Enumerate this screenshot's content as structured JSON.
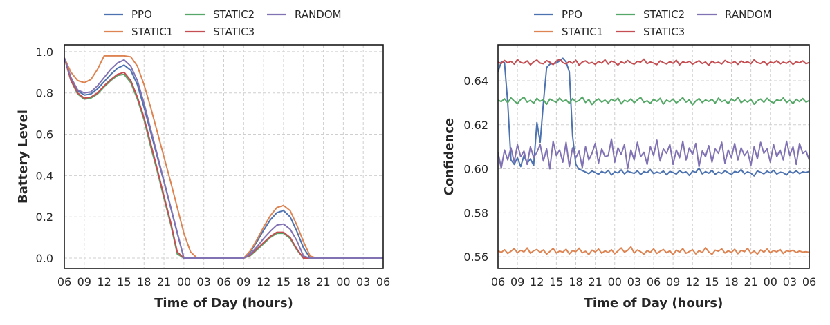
{
  "colors": {
    "PPO": "#4C72B0",
    "STATIC1": "#DD8452",
    "STATIC2": "#55A868",
    "STATIC3": "#C44E52",
    "RANDOM": "#8172B3"
  },
  "chart_data": [
    {
      "type": "line",
      "xlabel": "Time of Day (hours)",
      "ylabel": "Battery Level",
      "xlim_hours": [
        0,
        48
      ],
      "ylim": [
        -0.05,
        1.033
      ],
      "xtick_labels": [
        "06",
        "09",
        "12",
        "15",
        "18",
        "21",
        "00",
        "03",
        "06",
        "09",
        "12",
        "15",
        "18",
        "21",
        "00",
        "03",
        "06"
      ],
      "yticks": [
        0.0,
        0.2,
        0.4,
        0.6,
        0.8,
        1.0
      ],
      "ytick_labels": [
        "0.0",
        "0.2",
        "0.4",
        "0.6",
        "0.8",
        "1.0"
      ],
      "grid": true,
      "legend": {
        "placement": "top-center-outside",
        "rows": [
          [
            "PPO",
            "STATIC2",
            "RANDOM"
          ],
          [
            "STATIC1",
            "STATIC3"
          ]
        ]
      },
      "series": [
        {
          "name": "PPO",
          "values": [
            0.97,
            0.87,
            0.81,
            0.79,
            0.795,
            0.82,
            0.855,
            0.89,
            0.92,
            0.935,
            0.91,
            0.84,
            0.73,
            0.61,
            0.49,
            0.37,
            0.245,
            0.12,
            0.0,
            0,
            0,
            0,
            0,
            0,
            0,
            0,
            0,
            0,
            0.03,
            0.08,
            0.135,
            0.185,
            0.22,
            0.23,
            0.2,
            0.13,
            0.05,
            0,
            0,
            0,
            0,
            0,
            0,
            0,
            0,
            0,
            0,
            0,
            0
          ]
        },
        {
          "name": "STATIC1",
          "values": [
            0.97,
            0.9,
            0.86,
            0.85,
            0.865,
            0.915,
            0.98,
            0.98,
            0.98,
            0.98,
            0.975,
            0.93,
            0.84,
            0.73,
            0.61,
            0.49,
            0.37,
            0.245,
            0.12,
            0.03,
            0,
            0,
            0,
            0,
            0,
            0,
            0,
            0,
            0.035,
            0.09,
            0.15,
            0.205,
            0.245,
            0.255,
            0.23,
            0.16,
            0.08,
            0.01,
            0,
            0,
            0,
            0,
            0,
            0,
            0,
            0,
            0,
            0,
            0
          ]
        },
        {
          "name": "STATIC2",
          "values": [
            0.97,
            0.86,
            0.795,
            0.77,
            0.775,
            0.795,
            0.83,
            0.86,
            0.885,
            0.89,
            0.85,
            0.77,
            0.67,
            0.54,
            0.42,
            0.29,
            0.165,
            0.02,
            0,
            0,
            0,
            0,
            0,
            0,
            0,
            0,
            0,
            0,
            0.012,
            0.04,
            0.07,
            0.1,
            0.12,
            0.12,
            0.095,
            0.04,
            0,
            0,
            0,
            0,
            0,
            0,
            0,
            0,
            0,
            0,
            0,
            0,
            0
          ]
        },
        {
          "name": "STATIC3",
          "values": [
            0.97,
            0.86,
            0.8,
            0.775,
            0.78,
            0.8,
            0.835,
            0.865,
            0.89,
            0.9,
            0.86,
            0.78,
            0.68,
            0.555,
            0.43,
            0.3,
            0.175,
            0.03,
            0,
            0,
            0,
            0,
            0,
            0,
            0,
            0,
            0,
            0,
            0.015,
            0.045,
            0.075,
            0.105,
            0.125,
            0.125,
            0.1,
            0.045,
            0,
            0,
            0,
            0,
            0,
            0,
            0,
            0,
            0,
            0,
            0,
            0,
            0
          ]
        },
        {
          "name": "RANDOM",
          "values": [
            0.97,
            0.875,
            0.815,
            0.8,
            0.805,
            0.835,
            0.875,
            0.915,
            0.945,
            0.96,
            0.93,
            0.86,
            0.75,
            0.625,
            0.5,
            0.375,
            0.25,
            0.125,
            0.0,
            0,
            0,
            0,
            0,
            0,
            0,
            0,
            0,
            0,
            0.02,
            0.055,
            0.095,
            0.13,
            0.16,
            0.165,
            0.14,
            0.085,
            0.01,
            0,
            0,
            0,
            0,
            0,
            0,
            0,
            0,
            0,
            0,
            0,
            0
          ]
        }
      ]
    },
    {
      "type": "line",
      "xlabel": "Time of Day (hours)",
      "ylabel": "Confidence",
      "xlim_hours": [
        0,
        48
      ],
      "ylim": [
        0.5547,
        0.6563
      ],
      "xtick_labels": [
        "06",
        "09",
        "12",
        "15",
        "18",
        "21",
        "00",
        "03",
        "06",
        "09",
        "12",
        "15",
        "18",
        "21",
        "00",
        "03",
        "06"
      ],
      "yticks": [
        0.56,
        0.58,
        0.6,
        0.62,
        0.64
      ],
      "ytick_labels": [
        "0.56",
        "0.58",
        "0.60",
        "0.62",
        "0.64"
      ],
      "grid": true,
      "legend": {
        "placement": "top-center-outside",
        "rows": [
          [
            "PPO",
            "STATIC2",
            "RANDOM"
          ],
          [
            "STATIC1",
            "STATIC3"
          ]
        ]
      },
      "series": [
        {
          "name": "PPO",
          "values": [
            0.644,
            0.6485,
            0.6482,
            0.63,
            0.604,
            0.602,
            0.605,
            0.601,
            0.606,
            0.6025,
            0.6045,
            0.6015,
            0.621,
            0.612,
            0.63,
            0.646,
            0.6475,
            0.6478,
            0.648,
            0.649,
            0.6502,
            0.6485,
            0.644,
            0.615,
            0.602,
            0.5998,
            0.5992,
            0.5985,
            0.5978,
            0.599,
            0.5983,
            0.5975,
            0.5988,
            0.598,
            0.5993,
            0.5972,
            0.5986,
            0.5981,
            0.5995,
            0.5977,
            0.5989,
            0.5984,
            0.5979,
            0.5991,
            0.5974,
            0.5987,
            0.5982,
            0.5996,
            0.5978,
            0.5985,
            0.598,
            0.599,
            0.5973,
            0.5988,
            0.5983,
            0.5976,
            0.5992,
            0.5981,
            0.5986,
            0.597,
            0.5989,
            0.5984,
            0.6003,
            0.5977,
            0.5987,
            0.598,
            0.5993,
            0.5975,
            0.5985,
            0.5979,
            0.5991,
            0.5982,
            0.5974,
            0.5988,
            0.5983,
            0.5996,
            0.5978,
            0.5986,
            0.598,
            0.5968,
            0.599,
            0.5984,
            0.5977,
            0.5989,
            0.5981,
            0.5993,
            0.5976,
            0.5985,
            0.5982,
            0.5972,
            0.5988,
            0.598,
            0.5991,
            0.5978,
            0.5986,
            0.5983,
            0.5988
          ]
        },
        {
          "name": "STATIC1",
          "values": [
            0.5628,
            0.5619,
            0.5632,
            0.5615,
            0.5625,
            0.5637,
            0.5618,
            0.5629,
            0.5622,
            0.564,
            0.5616,
            0.5627,
            0.5633,
            0.562,
            0.5631,
            0.5612,
            0.5624,
            0.5638,
            0.5617,
            0.5626,
            0.5621,
            0.5634,
            0.5613,
            0.5628,
            0.5623,
            0.5639,
            0.5618,
            0.5625,
            0.561,
            0.563,
            0.5622,
            0.5635,
            0.5616,
            0.5627,
            0.5619,
            0.5632,
            0.5614,
            0.5626,
            0.564,
            0.5621,
            0.5629,
            0.5645,
            0.5617,
            0.5631,
            0.5623,
            0.5612,
            0.5628,
            0.562,
            0.5636,
            0.5615,
            0.5625,
            0.5633,
            0.5618,
            0.5627,
            0.5609,
            0.563,
            0.5621,
            0.5637,
            0.5616,
            0.5624,
            0.5632,
            0.5613,
            0.5628,
            0.5619,
            0.5641,
            0.5622,
            0.5611,
            0.563,
            0.5625,
            0.5636,
            0.5617,
            0.5627,
            0.562,
            0.5634,
            0.5614,
            0.5629,
            0.5623,
            0.5638,
            0.5616,
            0.5626,
            0.5612,
            0.5631,
            0.5621,
            0.5635,
            0.5618,
            0.5628,
            0.5622,
            0.5633,
            0.5615,
            0.5627,
            0.5624,
            0.563,
            0.5619,
            0.5626,
            0.5621,
            0.5623,
            0.562
          ]
        },
        {
          "name": "STATIC2",
          "values": [
            0.6312,
            0.6305,
            0.6318,
            0.63,
            0.6322,
            0.6308,
            0.6296,
            0.6315,
            0.6325,
            0.6303,
            0.6311,
            0.6298,
            0.632,
            0.6307,
            0.6314,
            0.6293,
            0.6317,
            0.6309,
            0.6302,
            0.6321,
            0.6306,
            0.6313,
            0.6297,
            0.6319,
            0.6304,
            0.631,
            0.6326,
            0.6301,
            0.6315,
            0.6292,
            0.6308,
            0.6318,
            0.6303,
            0.6312,
            0.6299,
            0.6316,
            0.6307,
            0.6321,
            0.6295,
            0.6311,
            0.6305,
            0.6318,
            0.63,
            0.6313,
            0.6324,
            0.6302,
            0.6309,
            0.6297,
            0.6316,
            0.6306,
            0.632,
            0.6294,
            0.6312,
            0.6304,
            0.6317,
            0.6299,
            0.631,
            0.6323,
            0.6303,
            0.6314,
            0.6291,
            0.6308,
            0.6319,
            0.6301,
            0.6313,
            0.6306,
            0.6316,
            0.6298,
            0.6321,
            0.6305,
            0.6311,
            0.6296,
            0.6318,
            0.6307,
            0.6325,
            0.63,
            0.6312,
            0.6303,
            0.6315,
            0.6293,
            0.6309,
            0.6317,
            0.6302,
            0.632,
            0.6306,
            0.6299,
            0.6314,
            0.6308,
            0.6322,
            0.6301,
            0.6311,
            0.6296,
            0.6316,
            0.6305,
            0.6319,
            0.6303,
            0.631
          ]
        },
        {
          "name": "STATIC3",
          "values": [
            0.6485,
            0.6478,
            0.6492,
            0.6481,
            0.6488,
            0.6475,
            0.6496,
            0.6483,
            0.6479,
            0.649,
            0.6472,
            0.6486,
            0.6494,
            0.648,
            0.6477,
            0.6491,
            0.6484,
            0.6473,
            0.6489,
            0.6497,
            0.6482,
            0.6476,
            0.6488,
            0.6479,
            0.6493,
            0.6471,
            0.6485,
            0.649,
            0.6478,
            0.6483,
            0.6474,
            0.6487,
            0.648,
            0.6495,
            0.6476,
            0.6489,
            0.6483,
            0.6471,
            0.6486,
            0.6479,
            0.6492,
            0.6481,
            0.6475,
            0.6488,
            0.6484,
            0.6498,
            0.6477,
            0.6485,
            0.648,
            0.6473,
            0.649,
            0.6482,
            0.6476,
            0.6487,
            0.6479,
            0.6493,
            0.6472,
            0.6486,
            0.6481,
            0.6488,
            0.6475,
            0.6483,
            0.6491,
            0.6478,
            0.6485,
            0.647,
            0.6489,
            0.648,
            0.6484,
            0.6476,
            0.6492,
            0.6483,
            0.6479,
            0.6487,
            0.6474,
            0.649,
            0.6481,
            0.6486,
            0.6477,
            0.6495,
            0.6482,
            0.6478,
            0.6488,
            0.6473,
            0.6485,
            0.648,
            0.6491,
            0.6476,
            0.6484,
            0.6479,
            0.6489,
            0.6474,
            0.6486,
            0.6481,
            0.649,
            0.6477,
            0.6483
          ]
        },
        {
          "name": "RANDOM",
          "values": [
            0.6075,
            0.6002,
            0.6085,
            0.604,
            0.6095,
            0.603,
            0.611,
            0.6055,
            0.608,
            0.602,
            0.61,
            0.605,
            0.6075,
            0.611,
            0.6035,
            0.609,
            0.6,
            0.6125,
            0.606,
            0.6085,
            0.603,
            0.612,
            0.601,
            0.6095,
            0.605,
            0.608,
            0.6005,
            0.61,
            0.604,
            0.607,
            0.6115,
            0.6025,
            0.609,
            0.6055,
            0.606,
            0.6135,
            0.603,
            0.6095,
            0.6065,
            0.611,
            0.6,
            0.6085,
            0.604,
            0.612,
            0.6055,
            0.6075,
            0.602,
            0.61,
            0.606,
            0.613,
            0.6035,
            0.609,
            0.607,
            0.611,
            0.602,
            0.6085,
            0.605,
            0.6125,
            0.604,
            0.6095,
            0.6065,
            0.6115,
            0.601,
            0.608,
            0.6055,
            0.6105,
            0.603,
            0.609,
            0.607,
            0.612,
            0.6025,
            0.6085,
            0.605,
            0.6115,
            0.604,
            0.6095,
            0.606,
            0.608,
            0.6015,
            0.61,
            0.6045,
            0.612,
            0.607,
            0.609,
            0.603,
            0.611,
            0.6055,
            0.6085,
            0.604,
            0.6125,
            0.606,
            0.61,
            0.602,
            0.6115,
            0.607,
            0.608,
            0.604
          ]
        }
      ]
    }
  ]
}
